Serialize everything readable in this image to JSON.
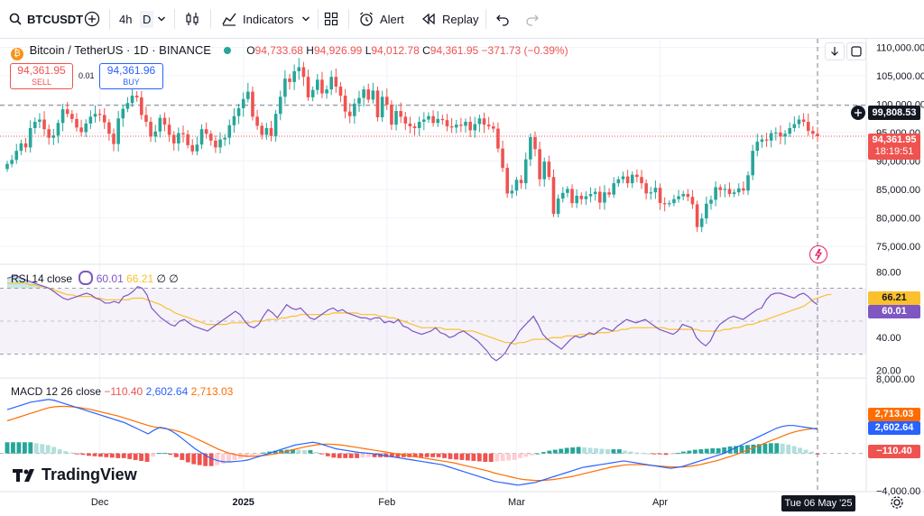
{
  "toolbar": {
    "symbol": "BTCUSDT",
    "interval_4h": "4h",
    "interval_d": "D",
    "indicators": "Indicators",
    "alert": "Alert",
    "replay": "Replay"
  },
  "legend": {
    "title": "Bitcoin / TetherUS · 1D · BINANCE",
    "o_label": "O",
    "o_value": "94,733.68",
    "h_label": "H",
    "h_value": "94,926.99",
    "l_label": "L",
    "l_value": "94,012.78",
    "c_label": "C",
    "c_value": "94,361.95",
    "change": "−371.73 (−0.39%)"
  },
  "trade": {
    "sell_price": "94,361.95",
    "sell_label": "SELL",
    "spread": "0.01",
    "buy_price": "94,361.96",
    "buy_label": "BUY"
  },
  "rsi_legend": {
    "name": "RSI 14 close",
    "value1": "60.01",
    "value2": "66.21",
    "na1": "∅",
    "na2": "∅"
  },
  "macd_legend": {
    "name": "MACD 12 26 close",
    "hist": "−110.40",
    "macd": "2,602.64",
    "signal": "2,713.03"
  },
  "axis_tags": {
    "crosshair_price": "99,808.53",
    "last_price": "94,361.95",
    "countdown": "18:19:51",
    "rsi_signal": "66.21",
    "rsi_value": "60.01",
    "macd_signal": "2,713.03",
    "macd_value": "2,602.64",
    "macd_hist": "−110.40",
    "date_tag": "Tue 06 May '25"
  },
  "logo_text": "TradingView",
  "colors": {
    "up": "#26a69a",
    "down": "#ef5350",
    "rsi": "#7e57c2",
    "rsi_ma": "#fbc02d",
    "macd": "#2962ff",
    "signal": "#ff6d00",
    "accent": "#2962ff"
  },
  "chart_data": [
    {
      "type": "candlestick",
      "title": "Bitcoin / TetherUS · 1D · BINANCE",
      "y_ticks": [
        75000,
        80000,
        85000,
        90000,
        95000,
        100000,
        105000,
        110000
      ],
      "y_tick_labels": [
        "75,000.00",
        "80,000.00",
        "85,000.00",
        "90,000.00",
        "95,000.00",
        "100,000.00",
        "105,000.00",
        "110,000.00"
      ],
      "ylim": [
        72000,
        111500
      ],
      "x_tick_labels": [
        "Dec",
        "2025",
        "Feb",
        "Mar",
        "Apr"
      ],
      "last_close": 94361.95,
      "crosshair_price": 99808.53,
      "close_series": [
        89500,
        90200,
        91800,
        93100,
        92400,
        95800,
        96900,
        97300,
        95600,
        94100,
        94500,
        96700,
        99100,
        98300,
        97400,
        95900,
        95100,
        96600,
        97800,
        98300,
        98100,
        96800,
        94800,
        93000,
        97500,
        99200,
        100200,
        101500,
        101200,
        98100,
        96900,
        94300,
        95200,
        97600,
        96400,
        94600,
        93100,
        94900,
        94700,
        92800,
        91700,
        92900,
        95600,
        94800,
        93600,
        92400,
        93800,
        94100,
        96300,
        97900,
        99300,
        100900,
        102200,
        97800,
        96200,
        94600,
        95800,
        94400,
        98300,
        101300,
        104500,
        103900,
        105800,
        106500,
        104800,
        101200,
        102500,
        104300,
        101900,
        102600,
        104800,
        103100,
        101500,
        98700,
        97900,
        100100,
        101100,
        102600,
        100800,
        102400,
        97700,
        101300,
        99900,
        96400,
        98800,
        97800,
        96600,
        96100,
        95800,
        96900,
        97300,
        97900,
        96700,
        97400,
        97200,
        96100,
        95900,
        96400,
        96200,
        96900,
        95400,
        96500,
        97500,
        96400,
        96100,
        95700,
        92200,
        88800,
        84300,
        84800,
        86700,
        86100,
        90300,
        94200,
        92100,
        86800,
        89900,
        87200,
        80700,
        83400,
        84400,
        85100,
        82600,
        83900,
        83300,
        83800,
        84200,
        84600,
        82700,
        84500,
        84100,
        86100,
        86800,
        87300,
        86100,
        87600,
        87200,
        86100,
        84300,
        84500,
        85300,
        82600,
        82400,
        82600,
        83300,
        83800,
        84200,
        83700,
        82400,
        78400,
        79900,
        82500,
        83200,
        85400,
        84900,
        85100,
        84200,
        84500,
        85200,
        84800,
        87500,
        91800,
        93400,
        93800,
        93600,
        94900,
        95000,
        94300,
        94800,
        95800,
        96500,
        97300,
        96900,
        95300,
        94800,
        94361.95
      ]
    },
    {
      "type": "line",
      "title": "RSI 14 close",
      "y_ticks": [
        20,
        40,
        60,
        80
      ],
      "y_tick_labels": [
        "20.00",
        "40.00",
        "60.00",
        "80.00"
      ],
      "ylim": [
        16,
        84
      ],
      "bands": [
        30,
        50,
        70
      ],
      "series": [
        {
          "name": "RSI",
          "last": 60.01,
          "values": [
            76,
            77,
            78,
            76,
            75,
            74,
            73,
            72,
            71,
            70,
            68,
            66,
            64,
            63,
            64,
            65,
            66,
            67,
            66,
            64,
            63,
            61,
            61,
            62,
            61,
            65,
            66,
            68,
            71,
            70,
            66,
            58,
            55,
            52,
            50,
            48,
            47,
            50,
            51,
            49,
            47,
            46,
            45,
            44,
            46,
            48,
            50,
            52,
            54,
            56,
            54,
            50,
            47,
            46,
            48,
            53,
            57,
            55,
            52,
            56,
            60,
            58,
            57,
            58,
            55,
            52,
            51,
            53,
            55,
            57,
            58,
            56,
            57,
            55,
            54,
            53,
            52,
            52,
            51,
            52,
            52,
            49,
            50,
            49,
            51,
            47,
            46,
            44,
            43,
            42,
            43,
            44,
            46,
            43,
            42,
            40,
            41,
            43,
            44,
            42,
            40,
            38,
            35,
            32,
            28,
            26,
            28,
            31,
            36,
            39,
            44,
            47,
            50,
            53,
            48,
            42,
            39,
            37,
            35,
            33,
            36,
            39,
            41,
            40,
            41,
            43,
            42,
            44,
            46,
            45,
            44,
            47,
            49,
            51,
            50,
            49,
            50,
            51,
            49,
            47,
            45,
            44,
            43,
            42,
            44,
            48,
            47,
            46,
            40,
            37,
            35,
            38,
            44,
            48,
            50,
            52,
            53,
            52,
            51,
            53,
            55,
            57,
            58,
            63,
            66,
            67,
            67,
            66,
            65,
            64,
            66,
            67,
            65,
            62,
            60.01
          ]
        },
        {
          "name": "RSI MA",
          "last": 66.21,
          "values": [
            73,
            73,
            73,
            73,
            73,
            72,
            72,
            71,
            71,
            70,
            69,
            68,
            67,
            66,
            66,
            65,
            65,
            65,
            65,
            64,
            64,
            63,
            63,
            63,
            63,
            63,
            63,
            64,
            64,
            64,
            63,
            62,
            61,
            60,
            58,
            57,
            55,
            54,
            53,
            52,
            51,
            50,
            49,
            48,
            48,
            48,
            48,
            48,
            49,
            49,
            49,
            49,
            49,
            50,
            50,
            50,
            51,
            51,
            51,
            52,
            52,
            53,
            53,
            54,
            54,
            54,
            54,
            54,
            54,
            54,
            55,
            55,
            55,
            55,
            55,
            55,
            54,
            54,
            54,
            54,
            53,
            53,
            52,
            52,
            51,
            50,
            49,
            48,
            47,
            46,
            46,
            46,
            46,
            46,
            45,
            45,
            45,
            45,
            44,
            44,
            44,
            43,
            42,
            41,
            40,
            39,
            38,
            37,
            37,
            36,
            37,
            37,
            38,
            39,
            39,
            39,
            39,
            40,
            40,
            40,
            41,
            41,
            41,
            42,
            42,
            42,
            42,
            43,
            43,
            43,
            44,
            44,
            45,
            45,
            46,
            46,
            46,
            46,
            46,
            46,
            46,
            46,
            45,
            45,
            45,
            45,
            45,
            45,
            45,
            44,
            44,
            44,
            44,
            44,
            45,
            45,
            46,
            46,
            47,
            48,
            48,
            49,
            50,
            51,
            52,
            53,
            54,
            55,
            56,
            57,
            58,
            59,
            61,
            63,
            64,
            65,
            66,
            66.21
          ]
        }
      ]
    },
    {
      "type": "bar+line",
      "title": "MACD 12 26 close",
      "y_ticks": [
        -4000,
        8000
      ],
      "y_tick_labels": [
        "−4,000.00",
        "8,000.00"
      ],
      "ylim": [
        -4000,
        8000
      ],
      "series": [
        {
          "name": "MACD",
          "last": 2602.64,
          "values": [
            4700,
            4900,
            5100,
            5300,
            5500,
            5600,
            5700,
            5800,
            5700,
            5500,
            5300,
            5100,
            4900,
            4700,
            4500,
            4300,
            4100,
            3900,
            3700,
            3500,
            3300,
            3000,
            2700,
            2400,
            2100,
            2500,
            2800,
            2700,
            2400,
            2000,
            1500,
            1000,
            500,
            100,
            -300,
            -600,
            -800,
            -900,
            -900,
            -850,
            -800,
            -700,
            -500,
            -300,
            -100,
            100,
            300,
            500,
            700,
            900,
            1000,
            1100,
            1200,
            1100,
            900,
            700,
            500,
            400,
            300,
            200,
            100,
            50,
            0,
            -100,
            -200,
            -300,
            -400,
            -500,
            -600,
            -700,
            -800,
            -900,
            -1000,
            -1100,
            -1200,
            -1400,
            -1600,
            -1800,
            -2000,
            -2200,
            -2400,
            -2600,
            -2800,
            -3000,
            -3100,
            -3200,
            -3300,
            -3400,
            -3300,
            -3200,
            -3100,
            -2900,
            -2700,
            -2500,
            -2300,
            -2100,
            -1900,
            -1700,
            -1500,
            -1400,
            -1300,
            -1200,
            -1100,
            -1000,
            -900,
            -800,
            -900,
            -1000,
            -1100,
            -1200,
            -1300,
            -1400,
            -1500,
            -1600,
            -1500,
            -1400,
            -1200,
            -1000,
            -800,
            -600,
            -400,
            -200,
            0,
            300,
            600,
            900,
            1200,
            1500,
            1800,
            2100,
            2400,
            2700,
            2900,
            3000,
            3000,
            2900,
            2800,
            2700,
            2602.64
          ]
        },
        {
          "name": "Signal",
          "last": 2713.03,
          "values": [
            3500,
            3700,
            3900,
            4100,
            4300,
            4500,
            4700,
            4900,
            5000,
            5050,
            5050,
            5000,
            4950,
            4850,
            4750,
            4600,
            4450,
            4300,
            4150,
            4000,
            3800,
            3600,
            3400,
            3200,
            3000,
            2850,
            2750,
            2650,
            2550,
            2400,
            2200,
            1950,
            1650,
            1350,
            1050,
            750,
            450,
            200,
            0,
            -150,
            -250,
            -300,
            -300,
            -250,
            -200,
            -100,
            0,
            150,
            300,
            450,
            600,
            750,
            850,
            950,
            1000,
            1000,
            950,
            900,
            800,
            700,
            600,
            500,
            400,
            300,
            200,
            100,
            0,
            -100,
            -200,
            -300,
            -400,
            -500,
            -600,
            -700,
            -800,
            -900,
            -1000,
            -1150,
            -1300,
            -1450,
            -1600,
            -1750,
            -1900,
            -2100,
            -2250,
            -2400,
            -2550,
            -2700,
            -2800,
            -2850,
            -2900,
            -2900,
            -2850,
            -2800,
            -2700,
            -2600,
            -2500,
            -2350,
            -2200,
            -2050,
            -1900,
            -1750,
            -1600,
            -1450,
            -1350,
            -1250,
            -1200,
            -1200,
            -1200,
            -1250,
            -1300,
            -1350,
            -1400,
            -1450,
            -1450,
            -1450,
            -1400,
            -1300,
            -1200,
            -1050,
            -900,
            -750,
            -550,
            -350,
            -150,
            100,
            350,
            600,
            850,
            1100,
            1350,
            1600,
            1850,
            2100,
            2300,
            2450,
            2550,
            2650,
            2713.03
          ]
        },
        {
          "name": "Histogram",
          "last": -110.4,
          "values": [
            1200,
            1200,
            1200,
            1200,
            1200,
            1100,
            1000,
            900,
            700,
            450,
            250,
            100,
            -50,
            -150,
            -250,
            -300,
            -350,
            -400,
            -450,
            -500,
            -500,
            -600,
            -700,
            -800,
            -900,
            -350,
            50,
            50,
            -150,
            -400,
            -700,
            -950,
            -1150,
            -1250,
            -1350,
            -1350,
            -1250,
            -1100,
            -900,
            -700,
            -550,
            -400,
            -200,
            -50,
            100,
            200,
            300,
            350,
            400,
            450,
            400,
            350,
            350,
            150,
            -100,
            -300,
            -450,
            -500,
            -500,
            -500,
            -500,
            -450,
            -400,
            -400,
            -400,
            -400,
            -400,
            -400,
            -400,
            -400,
            -400,
            -400,
            -400,
            -400,
            -400,
            -500,
            -600,
            -650,
            -700,
            -750,
            -800,
            -850,
            -900,
            -900,
            -850,
            -800,
            -750,
            -700,
            -500,
            -350,
            -200,
            0,
            150,
            300,
            400,
            500,
            600,
            650,
            700,
            650,
            600,
            550,
            500,
            450,
            450,
            450,
            300,
            200,
            100,
            50,
            0,
            -50,
            -100,
            -150,
            -50,
            50,
            200,
            300,
            400,
            450,
            500,
            550,
            550,
            650,
            750,
            800,
            850,
            900,
            950,
            1000,
            1050,
            1100,
            1100,
            1050,
            950,
            800,
            600,
            400,
            200,
            -110.4
          ]
        }
      ]
    }
  ]
}
